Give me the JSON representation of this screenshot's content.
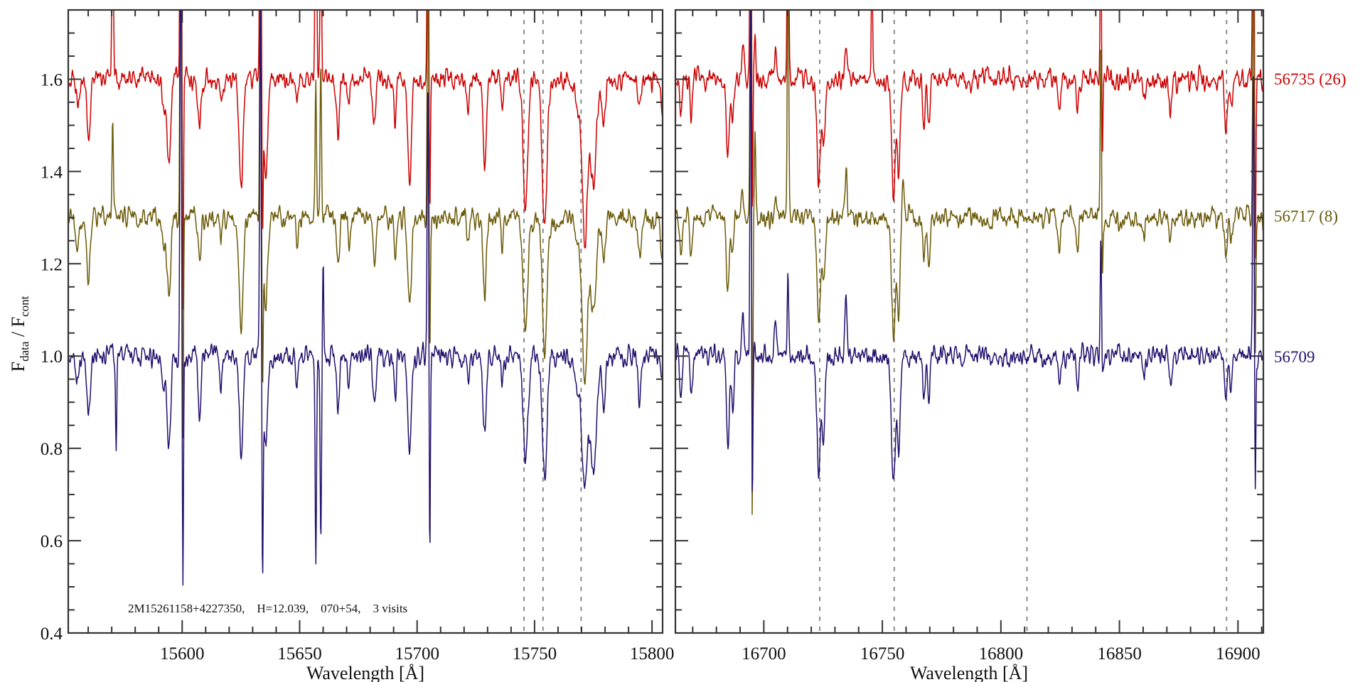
{
  "chart_data": {
    "type": "line",
    "title": "",
    "xlabel": "Wavelength [Å]",
    "ylabel": {
      "main": "F",
      "sub1": "data",
      "sep": " / F",
      "sub2": "cont"
    },
    "ylim": [
      0.4,
      1.75
    ],
    "yticks": [
      0.4,
      0.6,
      0.8,
      1.0,
      1.2,
      1.4,
      1.6
    ],
    "ytick_labels": [
      "0.4",
      "0.6",
      "0.8",
      "1.0",
      "1.2",
      "1.4",
      "1.6"
    ],
    "grid": false,
    "annotation": "2M15261158+4227350,    H=12.039,    070+54,    3 visits",
    "series": [
      {
        "name": "56735 (26)",
        "offset": 0.6,
        "color": "#cc0000",
        "seed": 11
      },
      {
        "name": "56717 (8)",
        "offset": 0.3,
        "color": "#6b5a08",
        "seed": 23
      },
      {
        "name": "56709",
        "offset": 0.0,
        "color": "#24106e",
        "seed": 37
      }
    ],
    "panels": [
      {
        "xlim": [
          15551.5,
          15804.5
        ],
        "xticks": [
          15600,
          15650,
          15700,
          15750,
          15800
        ],
        "xtick_labels": [
          "15600",
          "15650",
          "15700",
          "15750",
          "15800"
        ],
        "dashed_lines": [
          15745.5,
          15753.6,
          15769.8
        ],
        "absorption_lines": [
          {
            "w": 15560.1,
            "depth": [
              0.13,
              0.14,
              0.14
            ],
            "sigma": 0.7
          },
          {
            "w": 15555.5,
            "depth": [
              0.06,
              0.06,
              0.06
            ],
            "sigma": 0.8
          },
          {
            "w": 15594.3,
            "depth": [
              0.18,
              0.17,
              0.2
            ],
            "sigma": 0.8
          },
          {
            "w": 15592.0,
            "depth": [
              0.07,
              0.07,
              0.07
            ],
            "sigma": 0.6
          },
          {
            "w": 15607.4,
            "depth": [
              0.11,
              0.1,
              0.12
            ],
            "sigma": 0.6
          },
          {
            "w": 15616.6,
            "depth": [
              0.05,
              0.05,
              0.07
            ],
            "sigma": 0.5
          },
          {
            "w": 15625.1,
            "depth": [
              0.24,
              0.24,
              0.22
            ],
            "sigma": 0.8
          },
          {
            "w": 15635.5,
            "depth": [
              0.22,
              0.2,
              0.2
            ],
            "sigma": 0.8
          },
          {
            "w": 15649.0,
            "depth": [
              0.06,
              0.06,
              0.06
            ],
            "sigma": 0.5
          },
          {
            "w": 15666.3,
            "depth": [
              0.12,
              0.11,
              0.12
            ],
            "sigma": 0.6
          },
          {
            "w": 15671.0,
            "depth": [
              0.05,
              0.05,
              0.06
            ],
            "sigma": 0.5
          },
          {
            "w": 15681.8,
            "depth": [
              0.1,
              0.1,
              0.1
            ],
            "sigma": 0.6
          },
          {
            "w": 15690.7,
            "depth": [
              0.09,
              0.09,
              0.1
            ],
            "sigma": 0.5
          },
          {
            "w": 15696.8,
            "depth": [
              0.22,
              0.2,
              0.2
            ],
            "sigma": 0.8
          },
          {
            "w": 15721.7,
            "depth": [
              0.05,
              0.05,
              0.05
            ],
            "sigma": 0.5
          },
          {
            "w": 15728.7,
            "depth": [
              0.18,
              0.17,
              0.17
            ],
            "sigma": 0.7
          },
          {
            "w": 15736.3,
            "depth": [
              0.06,
              0.06,
              0.06
            ],
            "sigma": 0.5
          },
          {
            "w": 15746.1,
            "depth": [
              0.28,
              0.25,
              0.22
            ],
            "sigma": 1.0
          },
          {
            "w": 15754.3,
            "depth": [
              0.33,
              0.3,
              0.27
            ],
            "sigma": 1.0
          },
          {
            "w": 15768.5,
            "depth": [
              0.06,
              0.06,
              0.06
            ],
            "sigma": 1.5
          },
          {
            "w": 15771.4,
            "depth": [
              0.34,
              0.34,
              0.28
            ],
            "sigma": 1.1
          },
          {
            "w": 15775.0,
            "depth": [
              0.22,
              0.2,
              0.25
            ],
            "sigma": 1.3
          },
          {
            "w": 15779.5,
            "depth": [
              0.1,
              0.1,
              0.12
            ],
            "sigma": 0.7
          },
          {
            "w": 15794.7,
            "depth": [
              0.08,
              0.08,
              0.1
            ],
            "sigma": 0.6
          },
          {
            "w": 15804.3,
            "depth": [
              0.1,
              0.1,
              0.05
            ],
            "sigma": 0.6
          }
        ],
        "sky_features": [
          {
            "w": 15570.4,
            "amp": [
              0.5,
              0.2,
              0.0
            ],
            "sigma": 0.3
          },
          {
            "w": 15571.9,
            "amp": [
              0.0,
              0.0,
              -0.2
            ],
            "sigma": 0.25
          },
          {
            "w": 15599.4,
            "amp": [
              1.0,
              1.0,
              1.0
            ],
            "sigma": 0.3
          },
          {
            "w": 15600.3,
            "amp": [
              -0.5,
              -0.5,
              -0.5
            ],
            "sigma": 0.25
          },
          {
            "w": 15633.3,
            "amp": [
              0.8,
              0.6,
              0.8
            ],
            "sigma": 0.3
          },
          {
            "w": 15634.2,
            "amp": [
              -0.3,
              -0.3,
              -0.45
            ],
            "sigma": 0.25
          },
          {
            "w": 15656.9,
            "amp": [
              0.8,
              0.3,
              -0.45
            ],
            "sigma": 0.3
          },
          {
            "w": 15659.0,
            "amp": [
              0.4,
              0.35,
              -0.4
            ],
            "sigma": 0.3
          },
          {
            "w": 15660.0,
            "amp": [
              0.0,
              0.0,
              0.2
            ],
            "sigma": 0.25
          },
          {
            "w": 15704.6,
            "amp": [
              0.6,
              0.6,
              0.6
            ],
            "sigma": 0.3
          },
          {
            "w": 15705.4,
            "amp": [
              -0.3,
              -0.3,
              -0.45
            ],
            "sigma": 0.25
          }
        ]
      },
      {
        "xlim": [
          16662.7,
          16910.7
        ],
        "xticks": [
          16700,
          16750,
          16800,
          16850,
          16900
        ],
        "xtick_labels": [
          "16700",
          "16750",
          "16800",
          "16850",
          "16900"
        ],
        "dashed_lines": [
          16723.6,
          16755.0,
          16811.0,
          16895.2
        ],
        "absorption_lines": [
          {
            "w": 16665.0,
            "depth": [
              0.09,
              0.09,
              0.08
            ],
            "sigma": 0.5
          },
          {
            "w": 16669.4,
            "depth": [
              0.08,
              0.08,
              0.08
            ],
            "sigma": 0.5
          },
          {
            "w": 16684.8,
            "depth": [
              0.17,
              0.16,
              0.2
            ],
            "sigma": 0.6
          },
          {
            "w": 16686.9,
            "depth": [
              0.08,
              0.08,
              0.1
            ],
            "sigma": 0.5
          },
          {
            "w": 16723.2,
            "depth": [
              0.22,
              0.22,
              0.25
            ],
            "sigma": 0.8
          },
          {
            "w": 16725.3,
            "depth": [
              0.14,
              0.15,
              0.18
            ],
            "sigma": 0.6
          },
          {
            "w": 16754.7,
            "depth": [
              0.26,
              0.26,
              0.28
            ],
            "sigma": 0.8
          },
          {
            "w": 16756.9,
            "depth": [
              0.2,
              0.2,
              0.22
            ],
            "sigma": 0.6
          },
          {
            "w": 16767.5,
            "depth": [
              0.1,
              0.1,
              0.08
            ],
            "sigma": 0.5
          },
          {
            "w": 16769.6,
            "depth": [
              0.1,
              0.1,
              0.1
            ],
            "sigma": 0.5
          },
          {
            "w": 16824.6,
            "depth": [
              0.08,
              0.07,
              0.07
            ],
            "sigma": 0.5
          },
          {
            "w": 16832.3,
            "depth": [
              0.08,
              0.07,
              0.07
            ],
            "sigma": 0.5
          },
          {
            "w": 16860.3,
            "depth": [
              0.05,
              0.05,
              0.05
            ],
            "sigma": 0.5
          },
          {
            "w": 16871.5,
            "depth": [
              0.08,
              0.07,
              0.07
            ],
            "sigma": 0.5
          },
          {
            "w": 16895.0,
            "depth": [
              0.12,
              0.1,
              0.08
            ],
            "sigma": 0.6
          },
          {
            "w": 16897.1,
            "depth": [
              0.05,
              0.05,
              0.07
            ],
            "sigma": 0.5
          }
        ],
        "sky_features": [
          {
            "w": 16691.2,
            "amp": [
              0.05,
              0.05,
              0.1
            ],
            "sigma": 0.5
          },
          {
            "w": 16694.5,
            "amp": [
              0.8,
              0.8,
              0.8
            ],
            "sigma": 0.3
          },
          {
            "w": 16695.1,
            "amp": [
              -0.4,
              -0.75,
              -0.4
            ],
            "sigma": 0.25
          },
          {
            "w": 16696.3,
            "amp": [
              0.1,
              0.2,
              0.02
            ],
            "sigma": 0.3
          },
          {
            "w": 16704.9,
            "amp": [
              0.05,
              0.05,
              0.07
            ],
            "sigma": 0.5
          },
          {
            "w": 16710.2,
            "amp": [
              0.6,
              0.6,
              0.18
            ],
            "sigma": 0.3
          },
          {
            "w": 16734.7,
            "amp": [
              0.08,
              0.12,
              0.12
            ],
            "sigma": 0.4
          },
          {
            "w": 16745.6,
            "amp": [
              0.3,
              0.0,
              0.0
            ],
            "sigma": 0.25
          },
          {
            "w": 16758.7,
            "amp": [
              0.0,
              0.1,
              0.0
            ],
            "sigma": 0.35
          },
          {
            "w": 16842.2,
            "amp": [
              0.4,
              0.4,
              0.25
            ],
            "sigma": 0.3
          },
          {
            "w": 16842.7,
            "amp": [
              -0.25,
              -0.2,
              -0.08
            ],
            "sigma": 0.25
          },
          {
            "w": 16906.5,
            "amp": [
              0.8,
              0.6,
              0.6
            ],
            "sigma": 0.3
          },
          {
            "w": 16907.3,
            "amp": [
              -0.4,
              -0.3,
              -0.3
            ],
            "sigma": 0.25
          }
        ]
      }
    ]
  }
}
